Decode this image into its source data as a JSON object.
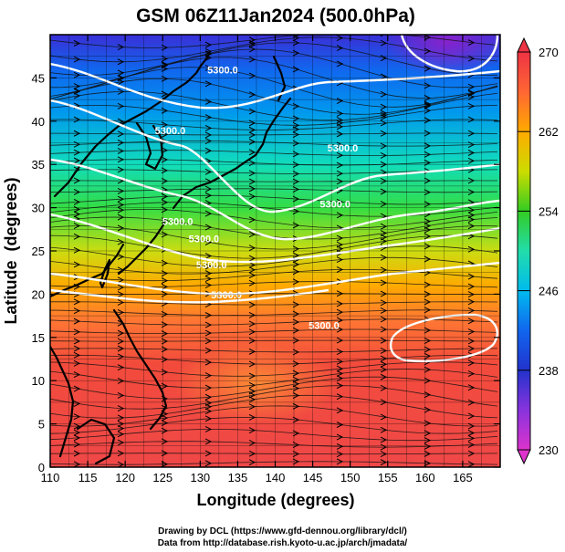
{
  "chart_data": {
    "type": "heatmap",
    "title": "GSM 06Z11Jan2024 (500.0hPa)",
    "xlabel": "Longitude (degrees)",
    "ylabel": "Latitude  (degrees)",
    "xlim": [
      110,
      170
    ],
    "ylim": [
      0,
      50
    ],
    "x_ticks": [
      "110",
      "115",
      "120",
      "125",
      "130",
      "135",
      "140",
      "145",
      "150",
      "155",
      "160",
      "165"
    ],
    "y_ticks": [
      "0",
      "5",
      "10",
      "15",
      "20",
      "25",
      "30",
      "35",
      "40",
      "45"
    ],
    "x_tick_values": [
      110,
      115,
      120,
      125,
      130,
      135,
      140,
      145,
      150,
      155,
      160,
      165
    ],
    "y_tick_values": [
      0,
      5,
      10,
      15,
      20,
      25,
      30,
      35,
      40,
      45
    ],
    "colorbar": {
      "min": 230,
      "max": 270,
      "ticks": [
        "230",
        "238",
        "246",
        "254",
        "262",
        "270"
      ],
      "tick_values": [
        230,
        238,
        246,
        254,
        262,
        270
      ],
      "colors": [
        "#cc33cc",
        "#4422cc",
        "#1155ee",
        "#00aaee",
        "#22ddaa",
        "#44cc22",
        "#aadd11",
        "#ffbb00",
        "#ff7722",
        "#ee4444"
      ]
    },
    "contour_labels": [
      {
        "text": "5300.0",
        "lon": 146.5,
        "lat": 16.0
      },
      {
        "text": "5300.0",
        "lon": 133.5,
        "lat": 19.5
      },
      {
        "text": "5300.0",
        "lon": 131.5,
        "lat": 23.0
      },
      {
        "text": "5300.0",
        "lon": 130.5,
        "lat": 26.0
      },
      {
        "text": "5300.0",
        "lon": 127.0,
        "lat": 28.0
      },
      {
        "text": "5300.0",
        "lon": 148.0,
        "lat": 30.0
      },
      {
        "text": "5300.0",
        "lon": 149.0,
        "lat": 36.5
      },
      {
        "text": "5300.0",
        "lon": 126.0,
        "lat": 38.5
      },
      {
        "text": "5300.0",
        "lon": 133.0,
        "lat": 45.5
      }
    ]
  },
  "credits": [
    "Drawing by DCL (https://www.gfd-dennou.org/library/dcl/)",
    "Data from http://database.rish.kyoto-u.ac.jp/arch/jmadata/"
  ]
}
